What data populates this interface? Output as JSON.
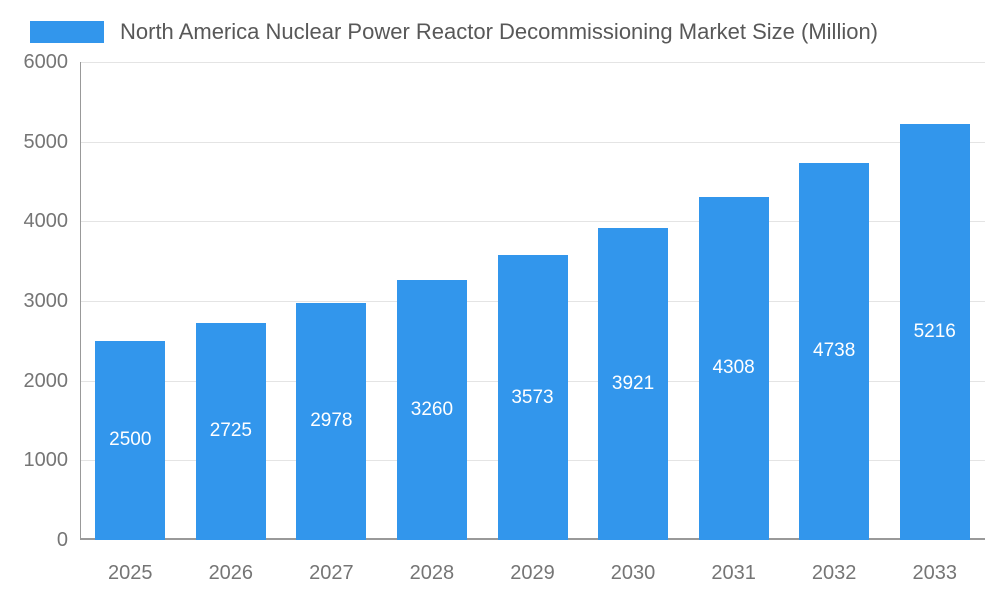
{
  "chart_data": {
    "type": "bar",
    "title": "North America Nuclear Power Reactor Decommissioning Market Size (Million)",
    "categories": [
      "2025",
      "2026",
      "2027",
      "2028",
      "2029",
      "2030",
      "2031",
      "2032",
      "2033"
    ],
    "values": [
      2500,
      2725,
      2978,
      3260,
      3573,
      3921,
      4308,
      4738,
      5216
    ],
    "xlabel": "",
    "ylabel": "",
    "ylim": [
      0,
      6000
    ],
    "yticks": [
      0,
      1000,
      2000,
      3000,
      4000,
      5000,
      6000
    ],
    "grid": true,
    "legend_position": "top-left",
    "value_labels": "inside-center",
    "colors": {
      "bar": "#3296ec",
      "value_label": "#ffffff",
      "grid_line": "#e4e4e4",
      "axis_line": "#999999",
      "tick_label": "#757575",
      "title": "#585858"
    }
  }
}
